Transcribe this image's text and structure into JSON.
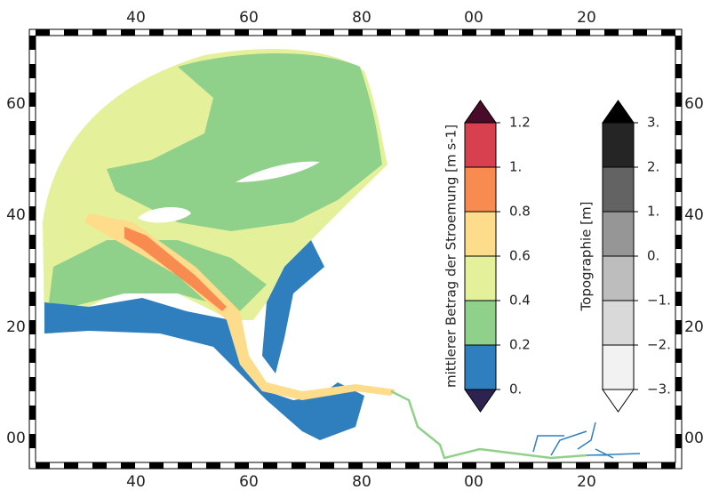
{
  "frame": {
    "x_labels": [
      "40",
      "60",
      "80",
      "00",
      "20"
    ],
    "y_labels": [
      "60",
      "40",
      "20",
      "00"
    ]
  },
  "current_colorbar": {
    "title": "mittlerer Betrag der Stroemung [m s-1]",
    "ticks": [
      {
        "value": 0,
        "label": "0."
      },
      0.2,
      0.4,
      0.6,
      0.8,
      {
        "value": 1,
        "label": "1."
      },
      1.2
    ],
    "colors": [
      "#2f7fbf",
      "#8fd18a",
      "#e4f19a",
      "#fddc8b",
      "#f88c50",
      "#d6404f"
    ],
    "under_color": "#2e2350",
    "over_color": "#4a0a2a"
  },
  "topo_colorbar": {
    "title": "Topographie [m]",
    "ticks": [
      {
        "value": -3,
        "label": "−3."
      },
      {
        "value": -2,
        "label": "−2."
      },
      {
        "value": -1,
        "label": "−1."
      },
      {
        "value": 0,
        "label": "0."
      },
      {
        "value": 1,
        "label": "1."
      },
      {
        "value": 2,
        "label": "2."
      },
      {
        "value": 3,
        "label": "3."
      }
    ],
    "colors": [
      "#f2f2f2",
      "#d9d9d9",
      "#bdbdbd",
      "#969696",
      "#636363",
      "#252525"
    ],
    "under_color": "#ffffff",
    "over_color": "#000000"
  }
}
